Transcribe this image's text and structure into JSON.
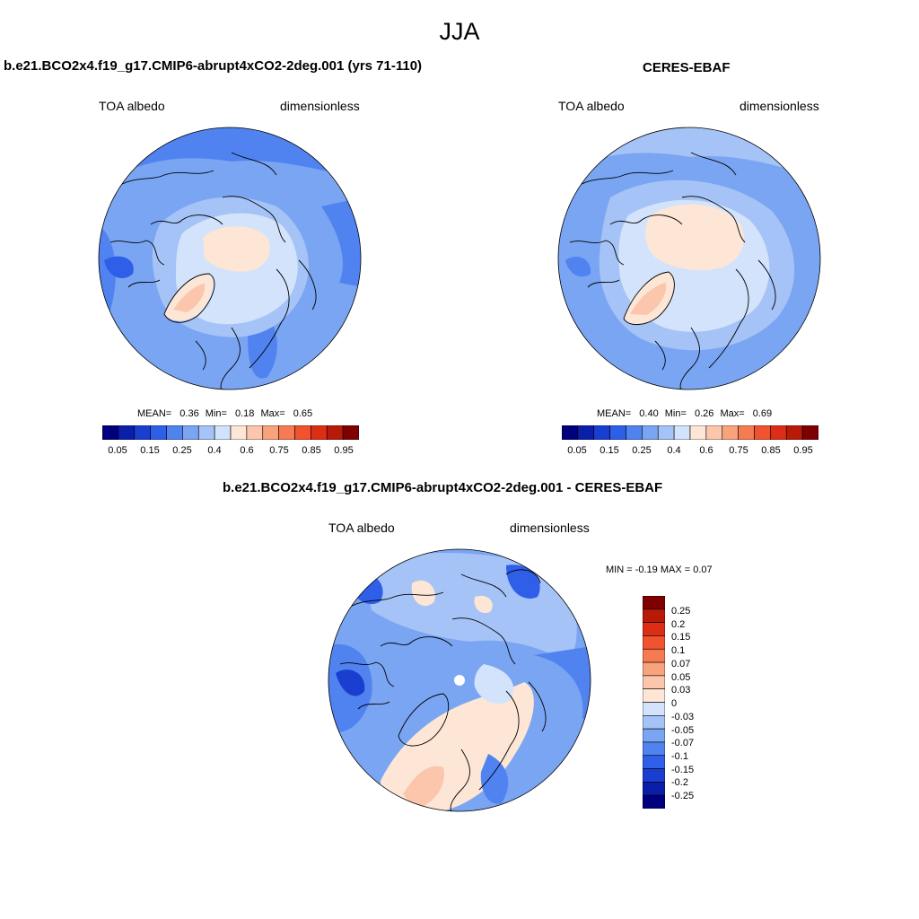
{
  "season_title": "JJA",
  "colors": {
    "blue_scale": [
      "#00007f",
      "#0a1ea8",
      "#1a3fd0",
      "#2f5fe8",
      "#5083f0",
      "#7aa5f2",
      "#a5c3f6",
      "#d2e3fb"
    ],
    "red_scale": [
      "#fde6d6",
      "#fcc6ac",
      "#f9a37d",
      "#f77b52",
      "#f1532e",
      "#dc2e16",
      "#b81a08",
      "#7f0000"
    ],
    "coastline": "#000000"
  },
  "panels": [
    {
      "title": "b.e21.BCO2x4.f19_g17.CMIP6-abrupt4xCO2-2deg.001 (yrs 71-110)",
      "variable": "TOA albedo",
      "units": "dimensionless",
      "stats": {
        "mean_label": "MEAN=",
        "mean": "0.36",
        "min_label": "Min=",
        "min": "0.18",
        "max_label": "Max=",
        "max": "0.65"
      },
      "colorbar_ticks": [
        "0.05",
        "0.15",
        "0.25",
        "0.4",
        "0.6",
        "0.75",
        "0.85",
        "0.95"
      ]
    },
    {
      "title": "CERES-EBAF",
      "variable": "TOA albedo",
      "units": "dimensionless",
      "stats": {
        "mean_label": "MEAN=",
        "mean": "0.40",
        "min_label": "Min=",
        "min": "0.26",
        "max_label": "Max=",
        "max": "0.69"
      },
      "colorbar_ticks": [
        "0.05",
        "0.15",
        "0.25",
        "0.4",
        "0.6",
        "0.75",
        "0.85",
        "0.95"
      ]
    },
    {
      "title": "b.e21.BCO2x4.f19_g17.CMIP6-abrupt4xCO2-2deg.001 - CERES-EBAF",
      "variable": "TOA albedo",
      "units": "dimensionless",
      "stats_line": "MIN =  -0.19 MAX =   0.07",
      "colorbar_ticks": [
        "0.25",
        "0.2",
        "0.15",
        "0.1",
        "0.07",
        "0.05",
        "0.03",
        "0",
        "-0.03",
        "-0.05",
        "-0.07",
        "-0.1",
        "-0.15",
        "-0.2",
        "-0.25"
      ]
    }
  ]
}
